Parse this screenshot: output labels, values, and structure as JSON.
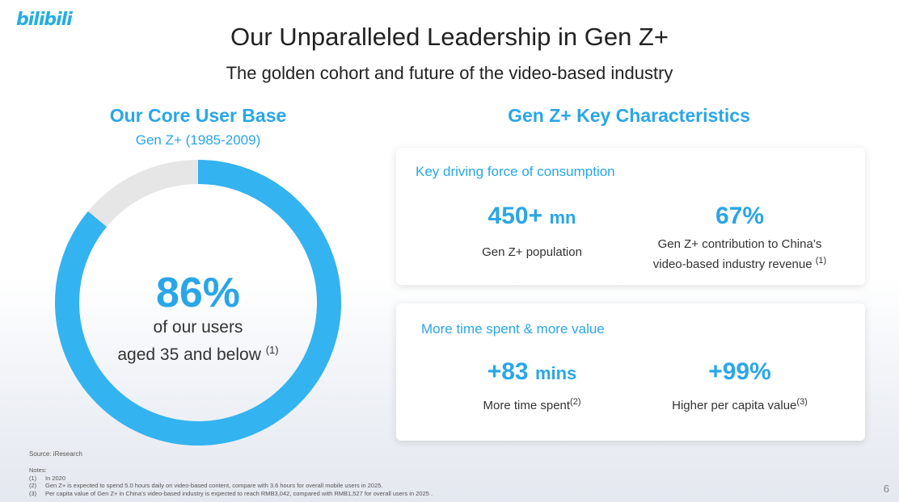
{
  "brand": {
    "logo_text": "bilibili",
    "accent": "#2aa6e8"
  },
  "header": {
    "title": "Our Unparalleled Leadership in Gen Z+",
    "subtitle": "The golden cohort and future of the video-based industry"
  },
  "core_user_base": {
    "heading": "Our Core User Base",
    "subheading": "Gen Z+ (1985-2009)",
    "percent_value": 86,
    "percent_label": "86%",
    "line1": "of our users",
    "line2": "aged 35 and below",
    "note_ref": "(1)",
    "ring_color": "#33b3f0",
    "rest_color": "#e6e6e6"
  },
  "characteristics": {
    "heading": "Gen Z+ Key Characteristics",
    "cards": [
      {
        "title": "Key driving force of consumption",
        "metrics": [
          {
            "value": "450+",
            "unit": "mn",
            "label": "Gen Z+ population",
            "label2": "",
            "note": ""
          },
          {
            "value": "67%",
            "unit": "",
            "label": "Gen Z+ contribution to China’s",
            "label2": "video-based industry revenue",
            "note": "(1)"
          }
        ]
      },
      {
        "title": "More time spent & more value",
        "metrics": [
          {
            "value": "+83",
            "unit": "mins",
            "label": "More time spent",
            "label2": "",
            "note": "(2)"
          },
          {
            "value": "+99%",
            "unit": "",
            "label": "Higher per capita value",
            "label2": "",
            "note": "(3)"
          }
        ]
      }
    ]
  },
  "footer": {
    "source": "Source: iResearch",
    "notes_title": "Notes:",
    "notes": [
      {
        "num": "(1)",
        "text": "In 2020"
      },
      {
        "num": "(2)",
        "text": "Gen Z+ is expected to spend 5.0 hours daily on video-based content, compare with 3.6 hours for overall mobile users in 2025."
      },
      {
        "num": "(3)",
        "text": "Per capita value of Gen Z+ in China’s video-based industry is expected to reach RMB3,042, compared with RMB1,527 for overall users in 2025 ."
      }
    ],
    "page_number": "6"
  }
}
